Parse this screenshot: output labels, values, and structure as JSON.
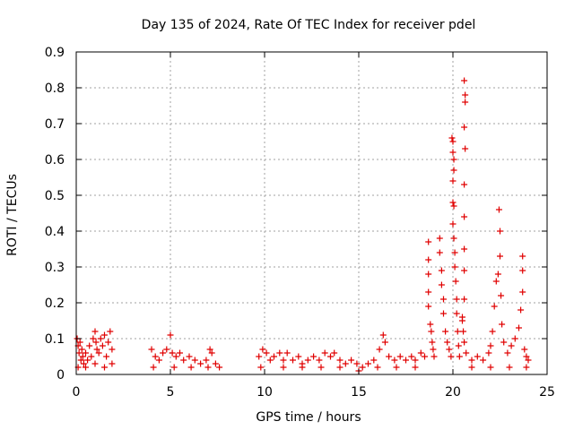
{
  "chart_data": {
    "type": "scatter",
    "title": "Day 135 of 2024, Rate Of TEC Index for receiver pdel",
    "xlabel": "GPS time / hours",
    "ylabel": "ROTI / TECUs",
    "xlim": [
      0,
      25
    ],
    "ylim": [
      0,
      0.9
    ],
    "xticks": [
      0,
      5,
      10,
      15,
      20,
      25
    ],
    "xtick_labels": [
      "0",
      "5",
      "10",
      "15",
      "20",
      "25"
    ],
    "yticks": [
      0,
      0.1,
      0.2,
      0.3,
      0.4,
      0.5,
      0.6,
      0.7,
      0.8,
      0.9
    ],
    "ytick_labels": [
      "0",
      "0.1",
      "0.2",
      "0.3",
      "0.4",
      "0.5",
      "0.6",
      "0.7",
      "0.8",
      "0.9"
    ],
    "grid": true,
    "marker": "+",
    "color": "#e00000",
    "series": [
      {
        "name": "ROTI",
        "points": [
          [
            0.05,
            0.1
          ],
          [
            0.1,
            0.08
          ],
          [
            0.15,
            0.06
          ],
          [
            0.2,
            0.09
          ],
          [
            0.25,
            0.04
          ],
          [
            0.3,
            0.07
          ],
          [
            0.35,
            0.05
          ],
          [
            0.4,
            0.03
          ],
          [
            0.5,
            0.06
          ],
          [
            0.6,
            0.04
          ],
          [
            0.7,
            0.08
          ],
          [
            0.8,
            0.05
          ],
          [
            0.9,
            0.1
          ],
          [
            1.0,
            0.12
          ],
          [
            1.05,
            0.09
          ],
          [
            1.1,
            0.07
          ],
          [
            1.2,
            0.06
          ],
          [
            1.3,
            0.1
          ],
          [
            1.4,
            0.08
          ],
          [
            1.5,
            0.11
          ],
          [
            1.6,
            0.05
          ],
          [
            1.7,
            0.09
          ],
          [
            1.8,
            0.12
          ],
          [
            1.9,
            0.07
          ],
          [
            0.1,
            0.02
          ],
          [
            0.5,
            0.02
          ],
          [
            1.0,
            0.03
          ],
          [
            1.5,
            0.02
          ],
          [
            1.9,
            0.03
          ],
          [
            4.0,
            0.07
          ],
          [
            4.2,
            0.05
          ],
          [
            4.4,
            0.04
          ],
          [
            4.6,
            0.06
          ],
          [
            4.8,
            0.07
          ],
          [
            5.0,
            0.11
          ],
          [
            5.1,
            0.06
          ],
          [
            5.3,
            0.05
          ],
          [
            5.5,
            0.06
          ],
          [
            5.7,
            0.04
          ],
          [
            6.0,
            0.05
          ],
          [
            6.3,
            0.04
          ],
          [
            6.6,
            0.03
          ],
          [
            6.9,
            0.04
          ],
          [
            7.1,
            0.07
          ],
          [
            7.2,
            0.06
          ],
          [
            7.4,
            0.03
          ],
          [
            7.6,
            0.02
          ],
          [
            4.1,
            0.02
          ],
          [
            5.2,
            0.02
          ],
          [
            6.1,
            0.02
          ],
          [
            7.0,
            0.02
          ],
          [
            9.7,
            0.05
          ],
          [
            9.9,
            0.07
          ],
          [
            10.1,
            0.06
          ],
          [
            10.3,
            0.04
          ],
          [
            10.5,
            0.05
          ],
          [
            10.8,
            0.06
          ],
          [
            11.0,
            0.04
          ],
          [
            11.2,
            0.06
          ],
          [
            11.5,
            0.04
          ],
          [
            11.8,
            0.05
          ],
          [
            12.0,
            0.03
          ],
          [
            12.3,
            0.04
          ],
          [
            12.6,
            0.05
          ],
          [
            12.9,
            0.04
          ],
          [
            13.2,
            0.06
          ],
          [
            13.5,
            0.05
          ],
          [
            13.7,
            0.06
          ],
          [
            14.0,
            0.04
          ],
          [
            14.3,
            0.03
          ],
          [
            14.6,
            0.04
          ],
          [
            14.9,
            0.03
          ],
          [
            15.2,
            0.02
          ],
          [
            15.5,
            0.03
          ],
          [
            15.8,
            0.04
          ],
          [
            16.1,
            0.07
          ],
          [
            16.3,
            0.11
          ],
          [
            16.4,
            0.09
          ],
          [
            16.6,
            0.05
          ],
          [
            16.9,
            0.04
          ],
          [
            17.2,
            0.05
          ],
          [
            17.5,
            0.04
          ],
          [
            17.8,
            0.05
          ],
          [
            18.0,
            0.04
          ],
          [
            18.3,
            0.06
          ],
          [
            18.5,
            0.05
          ],
          [
            9.8,
            0.02
          ],
          [
            11.0,
            0.02
          ],
          [
            12.0,
            0.02
          ],
          [
            13.0,
            0.02
          ],
          [
            14.0,
            0.02
          ],
          [
            15.0,
            0.01
          ],
          [
            16.0,
            0.02
          ],
          [
            17.0,
            0.02
          ],
          [
            18.0,
            0.02
          ],
          [
            18.7,
            0.37
          ],
          [
            18.7,
            0.32
          ],
          [
            18.7,
            0.28
          ],
          [
            18.7,
            0.23
          ],
          [
            18.7,
            0.19
          ],
          [
            18.8,
            0.14
          ],
          [
            18.85,
            0.12
          ],
          [
            18.9,
            0.09
          ],
          [
            18.95,
            0.07
          ],
          [
            19.0,
            0.05
          ],
          [
            19.3,
            0.38
          ],
          [
            19.3,
            0.34
          ],
          [
            19.4,
            0.29
          ],
          [
            19.4,
            0.25
          ],
          [
            19.5,
            0.21
          ],
          [
            19.5,
            0.17
          ],
          [
            19.6,
            0.12
          ],
          [
            19.7,
            0.09
          ],
          [
            19.8,
            0.07
          ],
          [
            19.9,
            0.05
          ],
          [
            19.95,
            0.66
          ],
          [
            20.0,
            0.65
          ],
          [
            20.0,
            0.62
          ],
          [
            20.05,
            0.6
          ],
          [
            20.05,
            0.57
          ],
          [
            20.0,
            0.54
          ],
          [
            20.0,
            0.48
          ],
          [
            20.05,
            0.47
          ],
          [
            20.0,
            0.42
          ],
          [
            20.05,
            0.38
          ],
          [
            20.1,
            0.34
          ],
          [
            20.1,
            0.3
          ],
          [
            20.15,
            0.26
          ],
          [
            20.2,
            0.21
          ],
          [
            20.2,
            0.17
          ],
          [
            20.25,
            0.12
          ],
          [
            20.3,
            0.08
          ],
          [
            20.35,
            0.05
          ],
          [
            20.6,
            0.82
          ],
          [
            20.65,
            0.78
          ],
          [
            20.65,
            0.76
          ],
          [
            20.6,
            0.69
          ],
          [
            20.65,
            0.63
          ],
          [
            20.6,
            0.53
          ],
          [
            20.6,
            0.44
          ],
          [
            20.6,
            0.35
          ],
          [
            20.6,
            0.29
          ],
          [
            20.6,
            0.21
          ],
          [
            20.5,
            0.16
          ],
          [
            20.5,
            0.15
          ],
          [
            20.55,
            0.12
          ],
          [
            20.6,
            0.09
          ],
          [
            20.7,
            0.06
          ],
          [
            21.0,
            0.04
          ],
          [
            21.3,
            0.05
          ],
          [
            21.6,
            0.04
          ],
          [
            21.9,
            0.06
          ],
          [
            22.0,
            0.08
          ],
          [
            22.1,
            0.12
          ],
          [
            22.2,
            0.19
          ],
          [
            22.3,
            0.26
          ],
          [
            22.4,
            0.28
          ],
          [
            22.45,
            0.46
          ],
          [
            22.5,
            0.4
          ],
          [
            22.5,
            0.33
          ],
          [
            22.55,
            0.22
          ],
          [
            22.6,
            0.14
          ],
          [
            22.7,
            0.09
          ],
          [
            22.9,
            0.06
          ],
          [
            23.1,
            0.08
          ],
          [
            23.3,
            0.1
          ],
          [
            23.5,
            0.13
          ],
          [
            23.6,
            0.18
          ],
          [
            23.7,
            0.33
          ],
          [
            23.7,
            0.29
          ],
          [
            23.7,
            0.23
          ],
          [
            23.8,
            0.07
          ],
          [
            23.9,
            0.05
          ],
          [
            24.0,
            0.04
          ],
          [
            21.0,
            0.02
          ],
          [
            22.0,
            0.02
          ],
          [
            23.0,
            0.02
          ],
          [
            23.9,
            0.02
          ]
        ]
      }
    ]
  }
}
